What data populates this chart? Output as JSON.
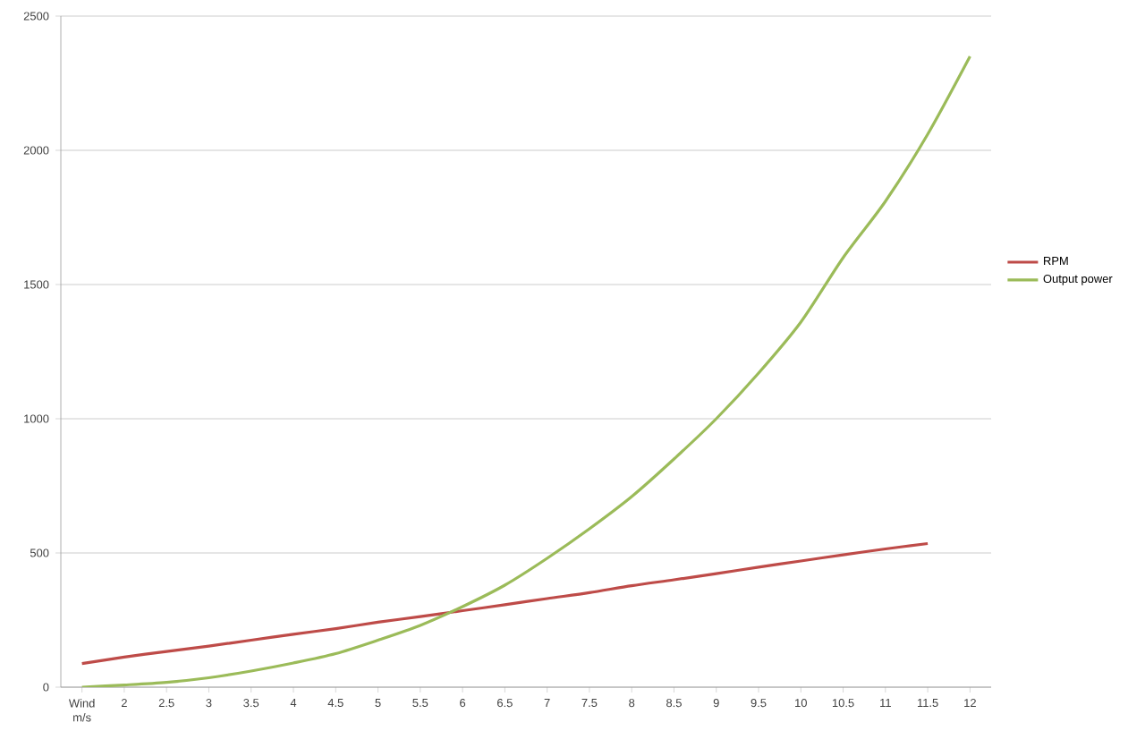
{
  "chart_data": {
    "type": "line",
    "categories": [
      "Wind m/s",
      "2",
      "2.5",
      "3",
      "3.5",
      "4",
      "4.5",
      "5",
      "5.5",
      "6",
      "6.5",
      "7",
      "7.5",
      "8",
      "8.5",
      "9",
      "9.5",
      "10",
      "10.5",
      "11",
      "11.5",
      "12"
    ],
    "series": [
      {
        "name": "RPM",
        "color": "#be4b48",
        "values": [
          88,
          112,
          133,
          153,
          175,
          197,
          218,
          242,
          263,
          285,
          307,
          330,
          352,
          378,
          400,
          423,
          447,
          470,
          493,
          515,
          535,
          null
        ]
      },
      {
        "name": "Output power",
        "color": "#9bbb59",
        "values": [
          0,
          8,
          18,
          35,
          60,
          90,
          125,
          175,
          230,
          300,
          380,
          480,
          590,
          710,
          850,
          1000,
          1170,
          1360,
          1600,
          1810,
          2060,
          2350
        ]
      }
    ],
    "ylim": [
      0,
      2500
    ],
    "yticks": [
      0,
      500,
      1000,
      1500,
      2000,
      2500
    ],
    "grid": "y",
    "legend": "right",
    "marker": "none",
    "line_style": "solid"
  }
}
